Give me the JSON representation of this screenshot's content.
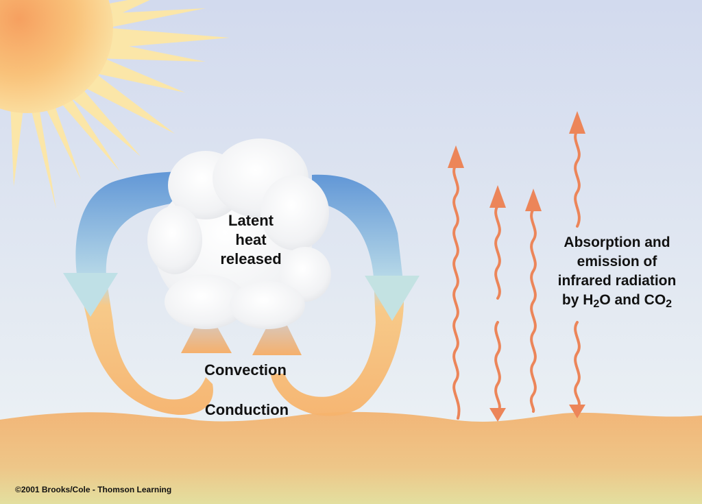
{
  "labels": {
    "latent": [
      "Latent",
      "heat",
      "released"
    ],
    "convection": "Convection",
    "conduction": "Conduction",
    "absorption_line1": "Absorption and",
    "absorption_line2": "emission of",
    "absorption_line3": "infrared radiation",
    "absorption_line4_prefix": "by H",
    "absorption_sub_h2o": "2",
    "absorption_line4_mid": "O and CO",
    "absorption_sub_co2": "2",
    "copyright": "©2001 Brooks/Cole - Thomson Learning"
  },
  "colors": {
    "sky_top": "#d3dbee",
    "sky_bottom": "#eef3f6",
    "ground": "#f0b87a",
    "ground_bottom": "#e2df9f",
    "sun_core": "#f7a867",
    "sun_rays": "#fbe4a4",
    "cloud": "#ffffff",
    "arrow_cool": "#5d95d4",
    "arrow_warm": "#f7b66f",
    "infrared": "#ec8559"
  },
  "icons": [
    "sun-icon",
    "cloud-icon",
    "convection-arrow-icon",
    "infrared-wave-icon"
  ]
}
